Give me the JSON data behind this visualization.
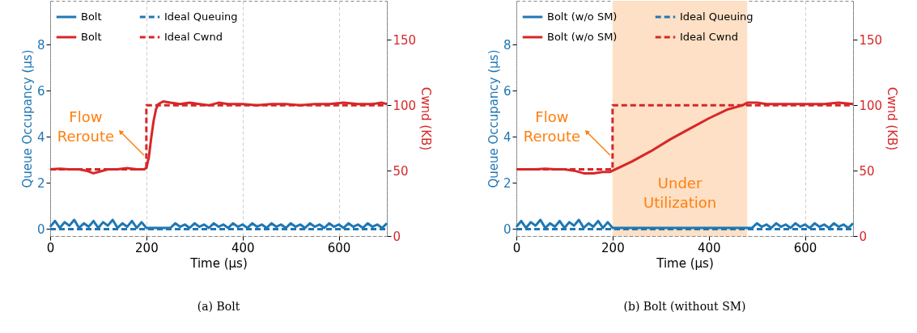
{
  "chart_data": [
    {
      "type": "line",
      "title": "(a) Bolt",
      "xlabel": "Time (μs)",
      "ylabel": "Queue Occupancy (μs)",
      "y2label": "Cwnd (KB)",
      "xlim": [
        0,
        700
      ],
      "xticks": [
        0,
        200,
        400,
        600
      ],
      "ylim": [
        -0.3,
        9.9
      ],
      "yticks": [
        0,
        2,
        4,
        6,
        8
      ],
      "y2lim": [
        0,
        180
      ],
      "y2ticks": [
        0,
        50,
        100,
        150
      ],
      "grid": "x",
      "legend": "top",
      "x": [
        0,
        10,
        20,
        30,
        40,
        50,
        60,
        70,
        80,
        90,
        100,
        110,
        120,
        130,
        140,
        150,
        160,
        170,
        180,
        190,
        200,
        210,
        220,
        230,
        240,
        250,
        260,
        270,
        280,
        290,
        300,
        310,
        320,
        330,
        340,
        350,
        360,
        370,
        380,
        390,
        400,
        410,
        420,
        430,
        440,
        450,
        460,
        470,
        480,
        490,
        500,
        510,
        520,
        530,
        540,
        550,
        560,
        570,
        580,
        590,
        600,
        610,
        620,
        630,
        640,
        650,
        660,
        670,
        680,
        690,
        700
      ],
      "series": [
        {
          "name": "Bolt",
          "color": "#1f77b4",
          "values": [
            0.1,
            0.35,
            0.05,
            0.3,
            0.15,
            0.4,
            0.05,
            0.25,
            0.1,
            0.35,
            0.05,
            0.3,
            0.15,
            0.4,
            0.05,
            0.25,
            0.1,
            0.35,
            0.05,
            0.3,
            0.05,
            0.05,
            0.05,
            0.05,
            0.05,
            0.05,
            0.25,
            0.1,
            0.2,
            0.05,
            0.25,
            0.1,
            0.2,
            0.05,
            0.25,
            0.1,
            0.2,
            0.05,
            0.25,
            0.1,
            0.2,
            0.05,
            0.25,
            0.1,
            0.2,
            0.05,
            0.25,
            0.1,
            0.2,
            0.05,
            0.25,
            0.1,
            0.2,
            0.05,
            0.25,
            0.1,
            0.2,
            0.05,
            0.25,
            0.1,
            0.2,
            0.05,
            0.25,
            0.1,
            0.2,
            0.05,
            0.25,
            0.1,
            0.2,
            0.05,
            0.25
          ]
        },
        {
          "name": "Bolt",
          "color": "#d62728",
          "axis": "y2",
          "x": [
            0,
            20,
            40,
            60,
            75,
            90,
            100,
            120,
            140,
            160,
            180,
            195,
            200,
            205,
            210,
            215,
            220,
            225,
            235,
            250,
            270,
            290,
            310,
            330,
            350,
            370,
            400,
            430,
            460,
            490,
            520,
            550,
            580,
            610,
            640,
            670,
            690,
            700
          ],
          "values": [
            51,
            51.5,
            51,
            51,
            50,
            48,
            49,
            51,
            51,
            52,
            51,
            51,
            52,
            60,
            75,
            88,
            97,
            101,
            103,
            102,
            101,
            102,
            101,
            100,
            102,
            101,
            101,
            100,
            101,
            101,
            100,
            101,
            101,
            102,
            101,
            101,
            102,
            101
          ]
        },
        {
          "name": "Ideal Queuing",
          "color": "#1f77b4",
          "line_style": "dashed",
          "x": [
            0,
            700
          ],
          "values": [
            0,
            0
          ]
        },
        {
          "name": "Ideal Cwnd",
          "color": "#d62728",
          "axis": "y2",
          "line_style": "dashed",
          "x": [
            0,
            200,
            200,
            700
          ],
          "values": [
            51,
            51,
            100,
            100
          ]
        }
      ],
      "annotations": [
        {
          "text": "Flow Reroute",
          "x": 200,
          "y": 3.1
        }
      ]
    },
    {
      "type": "line",
      "title": "(b) Bolt (without SM)",
      "xlabel": "Time (μs)",
      "ylabel": "Queue Occupancy (μs)",
      "y2label": "Cwnd (KB)",
      "xlim": [
        0,
        700
      ],
      "xticks": [
        0,
        200,
        400,
        600
      ],
      "ylim": [
        -0.3,
        9.9
      ],
      "yticks": [
        0,
        2,
        4,
        6,
        8
      ],
      "y2lim": [
        0,
        180
      ],
      "y2ticks": [
        0,
        50,
        100,
        150
      ],
      "grid": "x",
      "legend": "top",
      "x": [
        0,
        10,
        20,
        30,
        40,
        50,
        60,
        70,
        80,
        90,
        100,
        110,
        120,
        130,
        140,
        150,
        160,
        170,
        180,
        190,
        200,
        210,
        220,
        230,
        240,
        250,
        260,
        270,
        280,
        290,
        300,
        310,
        320,
        330,
        340,
        350,
        360,
        370,
        380,
        390,
        400,
        410,
        420,
        430,
        440,
        450,
        460,
        470,
        480,
        490,
        500,
        510,
        520,
        530,
        540,
        550,
        560,
        570,
        580,
        590,
        600,
        610,
        620,
        630,
        640,
        650,
        660,
        670,
        680,
        690,
        700
      ],
      "series": [
        {
          "name": "Bolt (w/o SM)",
          "color": "#1f77b4",
          "values": [
            0.1,
            0.35,
            0.05,
            0.3,
            0.15,
            0.4,
            0.05,
            0.25,
            0.1,
            0.35,
            0.05,
            0.3,
            0.15,
            0.4,
            0.05,
            0.25,
            0.1,
            0.35,
            0.05,
            0.3,
            0.05,
            0.05,
            0.05,
            0.05,
            0.05,
            0.05,
            0.05,
            0.05,
            0.05,
            0.05,
            0.05,
            0.05,
            0.05,
            0.05,
            0.05,
            0.05,
            0.05,
            0.05,
            0.05,
            0.05,
            0.05,
            0.05,
            0.05,
            0.05,
            0.05,
            0.05,
            0.05,
            0.05,
            0.05,
            0.05,
            0.25,
            0.1,
            0.2,
            0.05,
            0.25,
            0.1,
            0.2,
            0.05,
            0.25,
            0.1,
            0.2,
            0.05,
            0.25,
            0.1,
            0.2,
            0.05,
            0.25,
            0.1,
            0.2,
            0.05,
            0.25
          ]
        },
        {
          "name": "Bolt (w/o SM)",
          "color": "#d62728",
          "axis": "y2",
          "x": [
            0,
            20,
            40,
            60,
            80,
            100,
            120,
            140,
            160,
            180,
            195,
            200,
            240,
            280,
            320,
            360,
            400,
            440,
            470,
            480,
            500,
            520,
            550,
            580,
            610,
            640,
            670,
            700
          ],
          "values": [
            51,
            51,
            51,
            51.5,
            51,
            51,
            50,
            48,
            48,
            49,
            49,
            50,
            57,
            65,
            74,
            82,
            90,
            97,
            100,
            102,
            102,
            101,
            101,
            101,
            101,
            101,
            102,
            101
          ]
        },
        {
          "name": "Ideal Queuing",
          "color": "#1f77b4",
          "line_style": "dashed",
          "x": [
            0,
            700
          ],
          "values": [
            0,
            0
          ]
        },
        {
          "name": "Ideal Cwnd",
          "color": "#d62728",
          "axis": "y2",
          "line_style": "dashed",
          "x": [
            0,
            200,
            200,
            700
          ],
          "values": [
            51,
            51,
            100,
            100
          ]
        }
      ],
      "bands": [
        {
          "axis": "x",
          "from": 200,
          "to": 480,
          "label": "Under Utilization",
          "color": "#fde0c5"
        }
      ],
      "annotations": [
        {
          "text": "Flow Reroute",
          "x": 200,
          "y": 3.1
        }
      ]
    }
  ]
}
